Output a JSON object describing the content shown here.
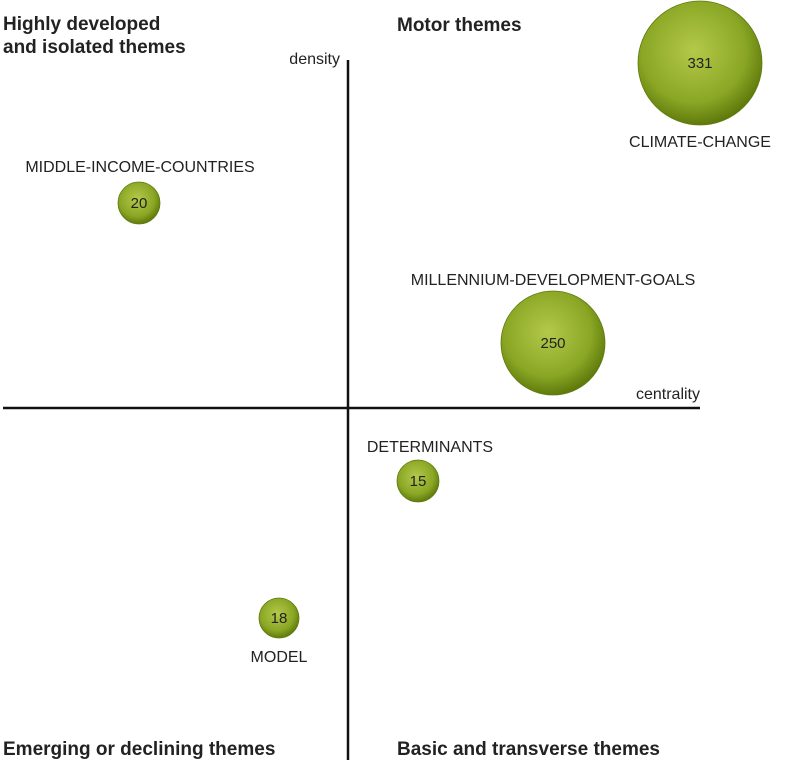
{
  "quadrants": {
    "top_left": "Highly developed\nand isolated themes",
    "top_right": "Motor themes",
    "bottom_left": "Emerging or declining themes",
    "bottom_right": "Basic and transverse themes"
  },
  "axes": {
    "y_label": "density",
    "x_label": "centrality"
  },
  "themes": [
    {
      "name": "CLIMATE-CHANGE",
      "count": 331
    },
    {
      "name": "MIDDLE-INCOME-COUNTRIES",
      "count": 20
    },
    {
      "name": "MILLENNIUM-DEVELOPMENT-GOALS",
      "count": 250
    },
    {
      "name": "DETERMINANTS",
      "count": 15
    },
    {
      "name": "MODEL",
      "count": 18
    }
  ]
}
